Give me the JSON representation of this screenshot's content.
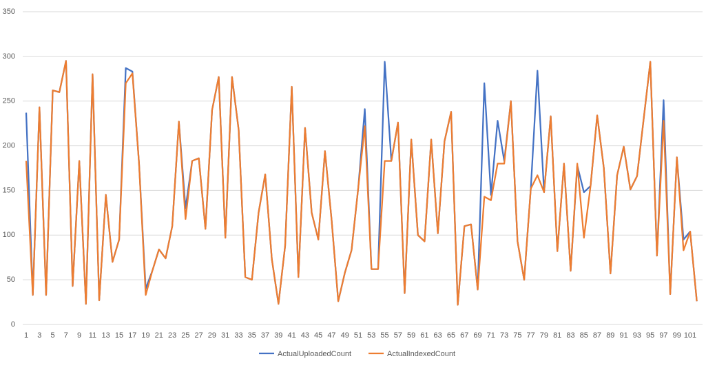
{
  "chart_data": {
    "type": "line",
    "categories": [
      "1",
      null,
      "3",
      null,
      "5",
      null,
      "7",
      null,
      "9",
      null,
      "11",
      null,
      "13",
      null,
      "15",
      null,
      "17",
      null,
      "19",
      null,
      "21",
      null,
      "23",
      null,
      "25",
      null,
      "27",
      null,
      "29",
      null,
      "31",
      null,
      "33",
      null,
      "35",
      null,
      "37",
      null,
      "39",
      null,
      "41",
      null,
      "43",
      null,
      "45",
      null,
      "47",
      null,
      "49",
      null,
      "51",
      null,
      "53",
      null,
      "55",
      null,
      "57",
      null,
      "59",
      null,
      "61",
      null,
      "63",
      null,
      "65",
      null,
      "67",
      null,
      "69",
      null,
      "71",
      null,
      "73",
      null,
      "75",
      null,
      "77",
      null,
      "79",
      null,
      "81",
      null,
      "83",
      null,
      "85",
      null,
      "87",
      null,
      "89",
      null,
      "91",
      null,
      "93",
      null,
      "95",
      null,
      "97",
      null,
      "99",
      null,
      "101",
      null
    ],
    "series": [
      {
        "name": "ActualUploadedCount",
        "color": "#4472c4",
        "values": [
          237,
          33,
          243,
          33,
          262,
          260,
          295,
          43,
          183,
          23,
          280,
          27,
          145,
          70,
          95,
          287,
          283,
          180,
          40,
          60,
          84,
          74,
          110,
          227,
          130,
          183,
          186,
          107,
          240,
          277,
          97,
          277,
          218,
          53,
          50,
          125,
          168,
          73,
          23,
          88,
          266,
          53,
          220,
          125,
          95,
          194,
          117,
          26,
          58,
          83,
          152,
          241,
          62,
          62,
          294,
          183,
          226,
          35,
          207,
          100,
          93,
          207,
          102,
          205,
          238,
          22,
          110,
          112,
          39,
          270,
          145,
          228,
          183,
          250,
          93,
          50,
          152,
          284,
          148,
          233,
          82,
          180,
          60,
          178,
          148,
          155,
          234,
          175,
          57,
          167,
          199,
          151,
          166,
          230,
          294,
          77,
          251,
          34,
          187,
          95,
          104,
          26
        ]
      },
      {
        "name": "ActualIndexedCount",
        "color": "#ed7d31",
        "values": [
          183,
          33,
          243,
          33,
          262,
          260,
          295,
          43,
          183,
          23,
          280,
          27,
          145,
          70,
          95,
          270,
          281,
          180,
          33,
          60,
          84,
          74,
          110,
          227,
          118,
          183,
          186,
          107,
          240,
          277,
          97,
          277,
          218,
          53,
          50,
          125,
          168,
          73,
          23,
          88,
          266,
          53,
          220,
          125,
          95,
          194,
          117,
          26,
          58,
          83,
          152,
          222,
          62,
          62,
          183,
          183,
          226,
          35,
          207,
          100,
          93,
          207,
          102,
          205,
          238,
          22,
          110,
          112,
          39,
          143,
          139,
          180,
          180,
          250,
          93,
          50,
          152,
          167,
          148,
          233,
          82,
          180,
          60,
          180,
          97,
          155,
          234,
          175,
          57,
          167,
          199,
          151,
          166,
          230,
          294,
          77,
          228,
          34,
          187,
          83,
          104,
          26
        ]
      }
    ],
    "ylim": [
      0,
      350
    ],
    "yticks": [
      0,
      50,
      100,
      150,
      200,
      250,
      300,
      350
    ],
    "grid": true,
    "legend": "bottom"
  }
}
